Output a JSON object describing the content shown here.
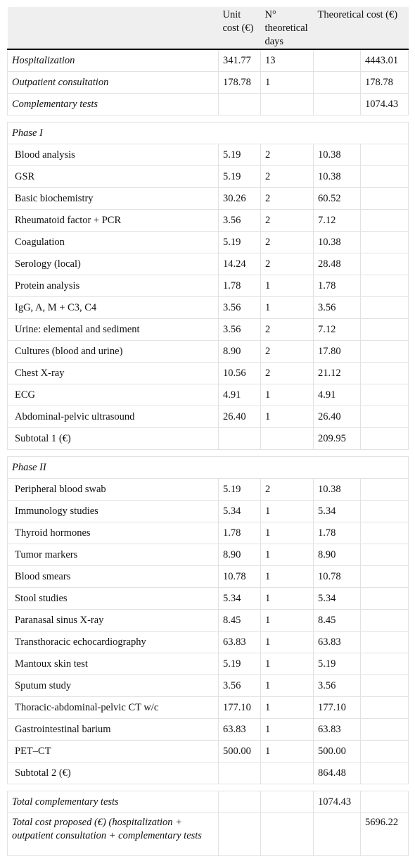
{
  "table": {
    "header": {
      "unit_cost": "Unit cost (€)",
      "days": "N° theoretical days",
      "cost": "Theoretical cost (€)"
    },
    "summary": [
      {
        "label": "Hospitalization",
        "unit": "341.77",
        "days": "13",
        "total": "4443.01"
      },
      {
        "label": "Outpatient consultation",
        "unit": "178.78",
        "days": "1",
        "total": "178.78"
      },
      {
        "label": "Complementary tests",
        "total": "1074.43"
      }
    ],
    "phases": [
      {
        "title": "Phase I",
        "rows": [
          {
            "label": "Blood analysis",
            "unit": "5.19",
            "days": "2",
            "cost": "10.38"
          },
          {
            "label": "GSR",
            "unit": "5.19",
            "days": "2",
            "cost": "10.38"
          },
          {
            "label": "Basic biochemistry",
            "unit": "30.26",
            "days": "2",
            "cost": "60.52"
          },
          {
            "label": "Rheumatoid factor + PCR",
            "unit": "3.56",
            "days": "2",
            "cost": "7.12"
          },
          {
            "label": "Coagulation",
            "unit": "5.19",
            "days": "2",
            "cost": "10.38"
          },
          {
            "label": "Serology (local)",
            "unit": "14.24",
            "days": "2",
            "cost": "28.48"
          },
          {
            "label": "Protein analysis",
            "unit": "1.78",
            "days": "1",
            "cost": "1.78"
          },
          {
            "label": "IgG, A, M + C3, C4",
            "unit": "3.56",
            "days": "1",
            "cost": "3.56"
          },
          {
            "label": "Urine: elemental and sediment",
            "unit": "3.56",
            "days": "2",
            "cost": "7.12"
          },
          {
            "label": "Cultures (blood and urine)",
            "unit": "8.90",
            "days": "2",
            "cost": "17.80"
          },
          {
            "label": "Chest X-ray",
            "unit": "10.56",
            "days": "2",
            "cost": "21.12"
          },
          {
            "label": "ECG",
            "unit": "4.91",
            "days": "1",
            "cost": "4.91"
          },
          {
            "label": "Abdominal-pelvic ultrasound",
            "unit": "26.40",
            "days": "1",
            "cost": "26.40"
          },
          {
            "label": "Subtotal 1 (€)",
            "cost": "209.95"
          }
        ]
      },
      {
        "title": "Phase II",
        "rows": [
          {
            "label": "Peripheral blood swab",
            "unit": "5.19",
            "days": "2",
            "cost": "10.38"
          },
          {
            "label": "Immunology studies",
            "unit": "5.34",
            "days": "1",
            "cost": "5.34"
          },
          {
            "label": "Thyroid hormones",
            "unit": "1.78",
            "days": "1",
            "cost": "1.78"
          },
          {
            "label": "Tumor markers",
            "unit": "8.90",
            "days": "1",
            "cost": "8.90"
          },
          {
            "label": "Blood smears",
            "unit": "10.78",
            "days": "1",
            "cost": "10.78"
          },
          {
            "label": "Stool studies",
            "unit": "5.34",
            "days": "1",
            "cost": "5.34"
          },
          {
            "label": "Paranasal sinus X-ray",
            "unit": "8.45",
            "days": "1",
            "cost": "8.45"
          },
          {
            "label": "Transthoracic echocardiography",
            "unit": "63.83",
            "days": "1",
            "cost": "63.83"
          },
          {
            "label": "Mantoux skin test",
            "unit": "5.19",
            "days": "1",
            "cost": "5.19"
          },
          {
            "label": "Sputum study",
            "unit": "3.56",
            "days": "1",
            "cost": "3.56"
          },
          {
            "label": "Thoracic-abdominal-pelvic CT w/c",
            "unit": "177.10",
            "days": "1",
            "cost": "177.10"
          },
          {
            "label": "Gastrointestinal barium",
            "unit": "63.83",
            "days": "1",
            "cost": "63.83"
          },
          {
            "label": "PET–CT",
            "unit": "500.00",
            "days": "1",
            "cost": "500.00"
          },
          {
            "label": "Subtotal 2 (€)",
            "cost": "864.48"
          }
        ]
      }
    ],
    "totals": [
      {
        "label": "Total complementary tests",
        "cost": "1074.43"
      },
      {
        "label": "Total cost proposed (€) (hospitalization + outpatient consultation + complementary tests",
        "total": "5696.22"
      }
    ]
  }
}
